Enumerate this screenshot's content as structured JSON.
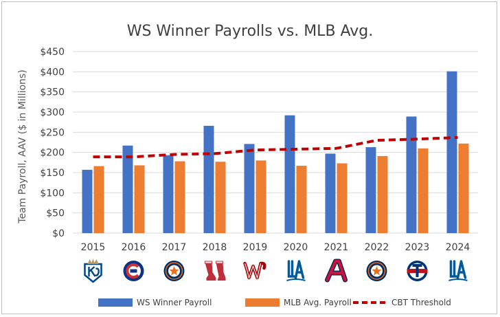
{
  "chart_data": {
    "type": "bar",
    "title": "WS Winner Payrolls vs. MLB Avg.",
    "ylabel": "Team Payroll, AAV ($ in Millions)",
    "xlabel": "",
    "categories": [
      "2015",
      "2016",
      "2017",
      "2018",
      "2019",
      "2020",
      "2021",
      "2022",
      "2023",
      "2024"
    ],
    "series": [
      {
        "name": "WS Winner Payroll",
        "type": "bar",
        "color": "#4472c4",
        "values": [
          157,
          217,
          193,
          266,
          221,
          292,
          197,
          213,
          289,
          401
        ]
      },
      {
        "name": "MLB Avg. Payroll",
        "type": "bar",
        "color": "#ed7d31",
        "values": [
          166,
          168,
          178,
          177,
          180,
          167,
          173,
          191,
          210,
          222
        ]
      },
      {
        "name": "CBT Threshold",
        "type": "line",
        "style": "dashed",
        "color": "#c00000",
        "values": [
          189,
          189,
          195,
          197,
          206,
          208,
          210,
          230,
          233,
          237
        ]
      }
    ],
    "ylim": [
      0,
      450
    ],
    "yticks": [
      0,
      50,
      100,
      150,
      200,
      250,
      300,
      350,
      400,
      450
    ],
    "ytick_labels": [
      "$0",
      "$50",
      "$100",
      "$150",
      "$200",
      "$250",
      "$300",
      "$350",
      "$400",
      "$450"
    ],
    "grid": true,
    "legend_position": "bottom",
    "team_logos": [
      "royals-logo",
      "cubs-logo",
      "astros-logo",
      "red-sox-logo",
      "nationals-logo",
      "dodgers-logo",
      "braves-logo",
      "astros-logo",
      "rangers-logo",
      "dodgers-logo"
    ]
  }
}
